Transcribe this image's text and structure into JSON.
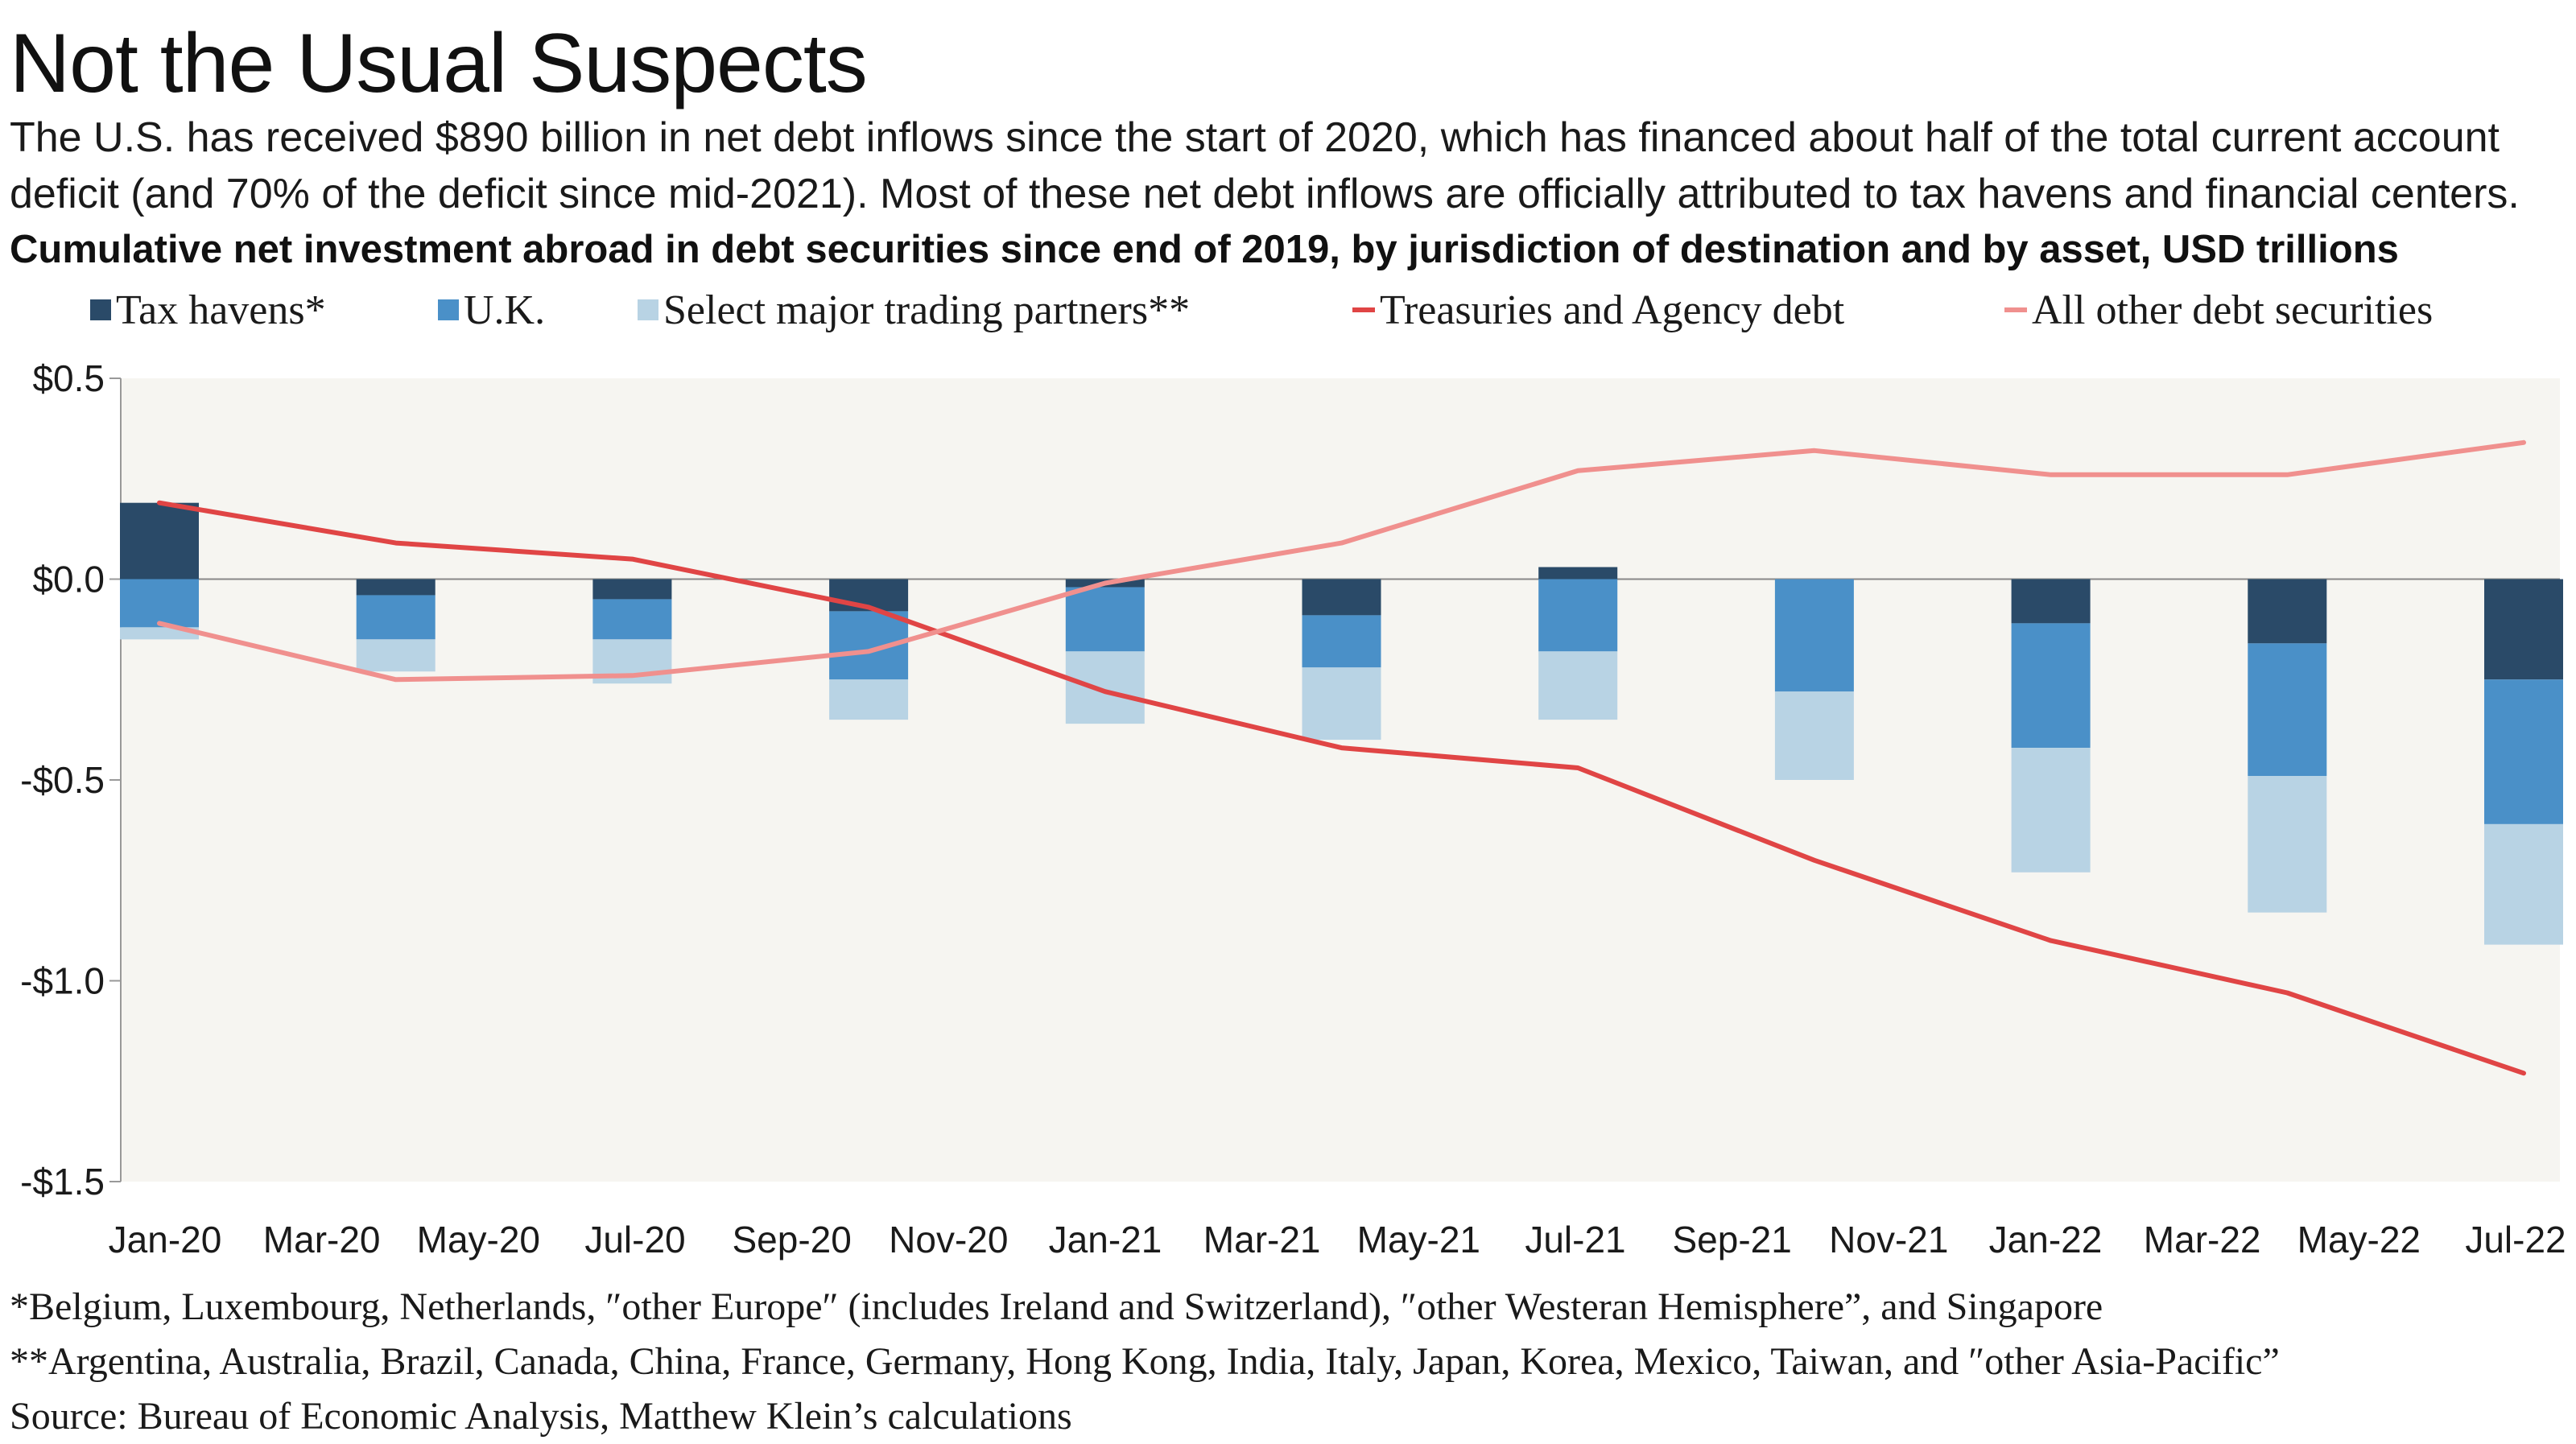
{
  "title": "Not the Usual Suspects",
  "subtitle": "The U.S. has received $890 billion in net debt inflows since the start of 2020, which has financed about half of the total current account deficit (and 70% of the deficit since mid-2021). Most of these net debt inflows are officially attributed to tax havens and financial centers.",
  "footnotes": {
    "tax_havens": "*Belgium, Luxembourg, Netherlands, ″other Europe″ (includes Ireland and Switzerland), ″other Westeran Hemisphere”, and Singapore",
    "trading_partners": "**Argentina, Australia, Brazil, Canada, China, France, Germany, Hong Kong, India, Italy, Japan, Korea, Mexico, Taiwan, and ″other Asia-Pacific”",
    "source": "Source: Bureau of Economic Analysis, Matthew Klein’s calculations"
  },
  "colors": {
    "tax_havens": "#2a4a68",
    "uk": "#4a90c8",
    "trading_partners": "#b8d3e4",
    "treasuries": "#e04545",
    "other_debt": "#f0908e",
    "plot_background": "#f6f5f1",
    "zero_line": "#888888"
  },
  "chart_data": {
    "type": "bar",
    "title": "Cumulative net investment abroad in debt securities since end of 2019, by jurisdiction of destination and by asset, USD trillions",
    "stacked": true,
    "categories": [
      "Jan-20",
      "Apr-20",
      "Jul-20",
      "Oct-20",
      "Jan-21",
      "Apr-21",
      "Jul-21",
      "Oct-21",
      "Jan-22",
      "Apr-22",
      "Jul-22"
    ],
    "x_tick_labels": [
      "Jan-20",
      "Mar-20",
      "May-20",
      "Jul-20",
      "Sep-20",
      "Nov-20",
      "Jan-21",
      "Mar-21",
      "May-21",
      "Jul-21",
      "Sep-21",
      "Nov-21",
      "Jan-22",
      "Mar-22",
      "May-22",
      "Jul-22"
    ],
    "y_tick_labels": [
      "$0.5",
      "$0.0",
      "-$0.5",
      "-$1.0",
      "-$1.5"
    ],
    "ylim": [
      -1.5,
      0.5
    ],
    "y_ticks": [
      0.5,
      0.0,
      -0.5,
      -1.0,
      -1.5
    ],
    "grid": false,
    "legend_position": "top",
    "series": [
      {
        "name": "Tax havens*",
        "kind": "bar",
        "values": [
          0.19,
          -0.04,
          -0.05,
          -0.08,
          -0.02,
          -0.09,
          0.03,
          0.0,
          -0.11,
          -0.16,
          -0.25
        ]
      },
      {
        "name": "U.K.",
        "kind": "bar",
        "values": [
          -0.12,
          -0.11,
          -0.1,
          -0.17,
          -0.16,
          -0.13,
          -0.18,
          -0.28,
          -0.31,
          -0.33,
          -0.36
        ]
      },
      {
        "name": "Select major trading partners**",
        "kind": "bar",
        "values": [
          -0.03,
          -0.08,
          -0.11,
          -0.1,
          -0.18,
          -0.18,
          -0.17,
          -0.22,
          -0.31,
          -0.34,
          -0.3
        ]
      },
      {
        "name": "Treasuries and Agency debt",
        "kind": "line",
        "values": [
          0.19,
          0.09,
          0.05,
          -0.07,
          -0.28,
          -0.42,
          -0.47,
          -0.7,
          -0.9,
          -1.03,
          -1.23
        ]
      },
      {
        "name": "All other debt securities",
        "kind": "line",
        "values": [
          -0.11,
          -0.25,
          -0.24,
          -0.18,
          -0.01,
          0.09,
          0.27,
          0.32,
          0.26,
          0.26,
          0.34
        ]
      }
    ]
  }
}
